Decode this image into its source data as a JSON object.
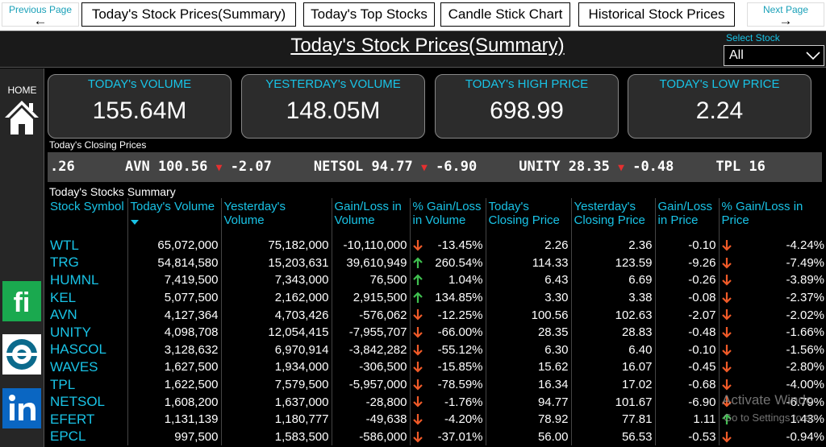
{
  "nav": {
    "previous_page": "Previous Page",
    "next_page": "Next Page",
    "tabs": [
      {
        "label": "Today's  Stock Prices(Summary)"
      },
      {
        "label": "Today's Top Stocks"
      },
      {
        "label": "Candle Stick Chart"
      },
      {
        "label": "Historical Stock Prices"
      }
    ]
  },
  "header": {
    "title": "Today's  Stock Prices(Summary)",
    "select_label": "Select Stock",
    "select_value": "All"
  },
  "sidebar": {
    "home_label": "HOME",
    "icons": [
      "home-icon",
      "fi-logo-icon",
      "target-logo-icon",
      "linkedin-icon"
    ]
  },
  "kpis": [
    {
      "label": "TODAY's VOLUME",
      "value": "155.64M"
    },
    {
      "label": "YESTERDAY's VOLUME",
      "value": "148.05M"
    },
    {
      "label": "TODAY's HIGH PRICE",
      "value": "698.99"
    },
    {
      "label": "TODAY's LOW PRICE",
      "value": "2.24"
    }
  ],
  "ticker": {
    "label": "Today's Closing Prices",
    "lead": ".26",
    "items": [
      {
        "symbol": "AVN",
        "price": "100.56",
        "change": "-2.07"
      },
      {
        "symbol": "NETSOL",
        "price": "94.77",
        "change": "-6.90"
      },
      {
        "symbol": "UNITY",
        "price": "28.35",
        "change": "-0.48"
      },
      {
        "symbol": "TPL",
        "price": "16",
        "change": ""
      }
    ]
  },
  "table": {
    "title": "Today's Stocks Summary",
    "columns": [
      "Stock Symbol",
      "Today's Volume",
      "Yesterday's Volume",
      "Gain/Loss in Volume",
      "% Gain/Loss in Volume",
      "Today's Closing Price",
      "Yesterday's Closing Price",
      "Gain/Loss in Price",
      "% Gain/Loss in Price"
    ],
    "rows": [
      {
        "sym": "WTL",
        "tv": "65,072,000",
        "yv": "75,182,000",
        "gv": "-10,110,000",
        "gv_dir": "down",
        "pv": "-13.45%",
        "tc": "2.26",
        "yc": "2.36",
        "gp": "-0.10",
        "gp_dir": "down",
        "pp": "-4.24%"
      },
      {
        "sym": "TRG",
        "tv": "54,814,580",
        "yv": "15,203,631",
        "gv": "39,610,949",
        "gv_dir": "up",
        "pv": "260.54%",
        "tc": "114.33",
        "yc": "123.59",
        "gp": "-9.26",
        "gp_dir": "down",
        "pp": "-7.49%"
      },
      {
        "sym": "HUMNL",
        "tv": "7,419,500",
        "yv": "7,343,000",
        "gv": "76,500",
        "gv_dir": "up",
        "pv": "1.04%",
        "tc": "6.43",
        "yc": "6.69",
        "gp": "-0.26",
        "gp_dir": "down",
        "pp": "-3.89%"
      },
      {
        "sym": "KEL",
        "tv": "5,077,500",
        "yv": "2,162,000",
        "gv": "2,915,500",
        "gv_dir": "up",
        "pv": "134.85%",
        "tc": "3.30",
        "yc": "3.38",
        "gp": "-0.08",
        "gp_dir": "down",
        "pp": "-2.37%"
      },
      {
        "sym": "AVN",
        "tv": "4,127,364",
        "yv": "4,703,426",
        "gv": "-576,062",
        "gv_dir": "down",
        "pv": "-12.25%",
        "tc": "100.56",
        "yc": "102.63",
        "gp": "-2.07",
        "gp_dir": "down",
        "pp": "-2.02%"
      },
      {
        "sym": "UNITY",
        "tv": "4,098,708",
        "yv": "12,054,415",
        "gv": "-7,955,707",
        "gv_dir": "down",
        "pv": "-66.00%",
        "tc": "28.35",
        "yc": "28.83",
        "gp": "-0.48",
        "gp_dir": "down",
        "pp": "-1.66%"
      },
      {
        "sym": "HASCOL",
        "tv": "3,128,632",
        "yv": "6,970,914",
        "gv": "-3,842,282",
        "gv_dir": "down",
        "pv": "-55.12%",
        "tc": "6.30",
        "yc": "6.40",
        "gp": "-0.10",
        "gp_dir": "down",
        "pp": "-1.56%"
      },
      {
        "sym": "WAVES",
        "tv": "1,627,500",
        "yv": "1,934,000",
        "gv": "-306,500",
        "gv_dir": "down",
        "pv": "-15.85%",
        "tc": "15.62",
        "yc": "16.07",
        "gp": "-0.45",
        "gp_dir": "down",
        "pp": "-2.80%"
      },
      {
        "sym": "TPL",
        "tv": "1,622,500",
        "yv": "7,579,500",
        "gv": "-5,957,000",
        "gv_dir": "down",
        "pv": "-78.59%",
        "tc": "16.34",
        "yc": "17.02",
        "gp": "-0.68",
        "gp_dir": "down",
        "pp": "-4.00%"
      },
      {
        "sym": "NETSOL",
        "tv": "1,608,200",
        "yv": "1,637,000",
        "gv": "-28,800",
        "gv_dir": "down",
        "pv": "-1.76%",
        "tc": "94.77",
        "yc": "101.67",
        "gp": "-6.90",
        "gp_dir": "down",
        "pp": "-6.79%"
      },
      {
        "sym": "EFERT",
        "tv": "1,131,139",
        "yv": "1,180,777",
        "gv": "-49,638",
        "gv_dir": "down",
        "pv": "-4.20%",
        "tc": "78.92",
        "yc": "77.81",
        "gp": "1.11",
        "gp_dir": "up",
        "pp": "1.43%"
      },
      {
        "sym": "EPCL",
        "tv": "997,500",
        "yv": "1,583,500",
        "gv": "-586,000",
        "gv_dir": "down",
        "pv": "-37.01%",
        "tc": "56.00",
        "yc": "56.53",
        "gp": "-0.53",
        "gp_dir": "down",
        "pp": "-0.94%"
      }
    ]
  },
  "watermark": {
    "line1": "Activate Windo",
    "line2": "Go to Settings to ac"
  },
  "colors": {
    "accent": "#19c3e6",
    "up": "#3fbf4f",
    "down": "#f05a28",
    "ticker_down": "#e53030"
  }
}
